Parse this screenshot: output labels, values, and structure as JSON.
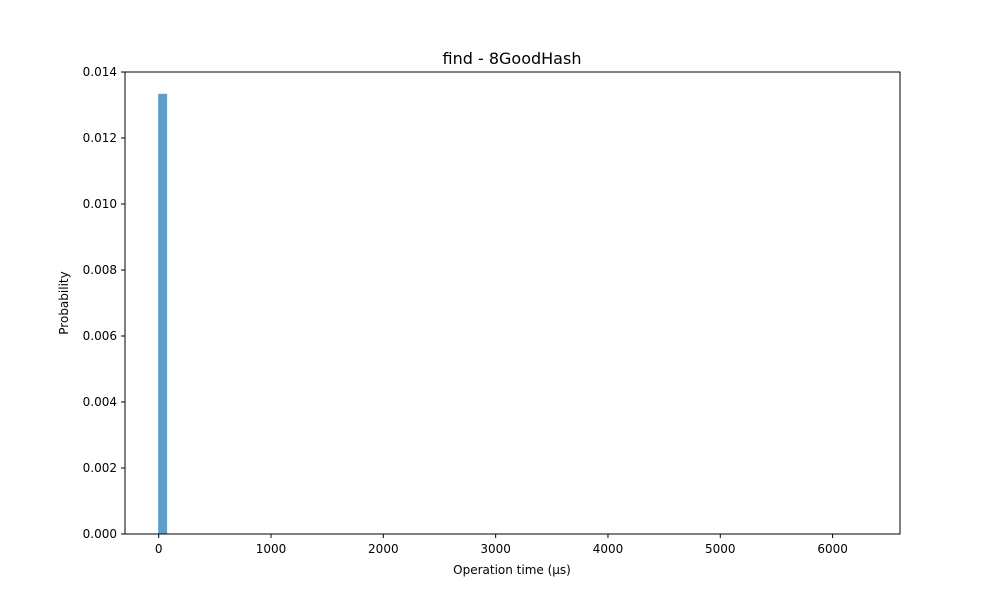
{
  "chart_data": {
    "type": "bar",
    "title": "find -  8GoodHash",
    "xlabel": "Operation time (µs)",
    "ylabel": "Probability",
    "xlim": [
      -300,
      6600
    ],
    "ylim": [
      0,
      0.014
    ],
    "xticks": [
      0,
      1000,
      2000,
      3000,
      4000,
      5000,
      6000
    ],
    "xtick_labels": [
      "0",
      "1000",
      "2000",
      "3000",
      "4000",
      "5000",
      "6000"
    ],
    "yticks": [
      0,
      0.002,
      0.004,
      0.006,
      0.008,
      0.01,
      0.012,
      0.014
    ],
    "ytick_labels": [
      "0.000",
      "0.002",
      "0.004",
      "0.006",
      "0.008",
      "0.010",
      "0.012",
      "0.014"
    ],
    "grid": false,
    "bars": [
      {
        "x_start": -5,
        "x_end": 75,
        "value": 0.01334
      }
    ],
    "colors": {
      "bar": "#5f9ec9"
    }
  }
}
